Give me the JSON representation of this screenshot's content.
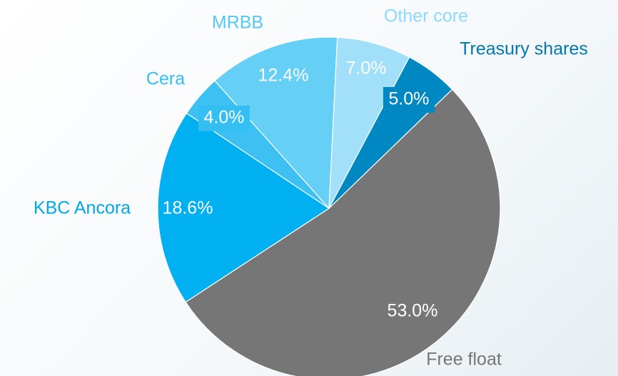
{
  "chart_data": {
    "type": "pie",
    "categories": [
      "Free float",
      "KBC Ancora",
      "Cera",
      "MRBB",
      "Other core",
      "Treasury shares"
    ],
    "values": [
      53.0,
      18.6,
      4.0,
      12.4,
      7.0,
      5.0
    ],
    "value_labels": [
      "53.0%",
      "18.6%",
      "4.0%",
      "12.4%",
      "7.0%",
      "5.0%"
    ],
    "colors": [
      "#767676",
      "#00b0f0",
      "#3dc0f2",
      "#66cff6",
      "#a2e0fa",
      "#0088c2"
    ]
  }
}
